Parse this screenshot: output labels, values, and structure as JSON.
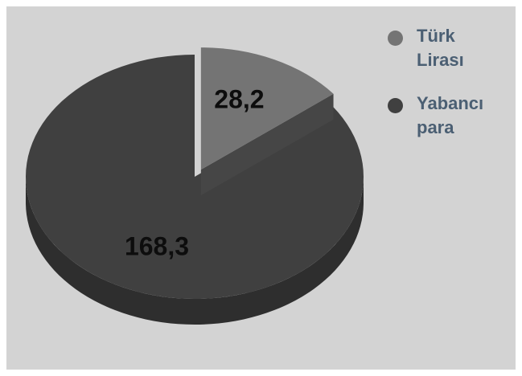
{
  "chart_data": {
    "type": "pie",
    "title": "",
    "categories": [
      "Türk Lirası",
      "Yabancı para"
    ],
    "values": [
      28.2,
      168.3
    ],
    "value_labels": [
      "28,2",
      "168,3"
    ],
    "colors": [
      "#747474",
      "#404040"
    ],
    "exploded": [
      "Türk Lirası"
    ],
    "style": "3d",
    "legend_position": "right",
    "legend": [
      {
        "line1": "Türk",
        "line2": "Lirası",
        "color": "#747474"
      },
      {
        "line1": "Yabancı",
        "line2": "para",
        "color": "#404040"
      }
    ]
  }
}
